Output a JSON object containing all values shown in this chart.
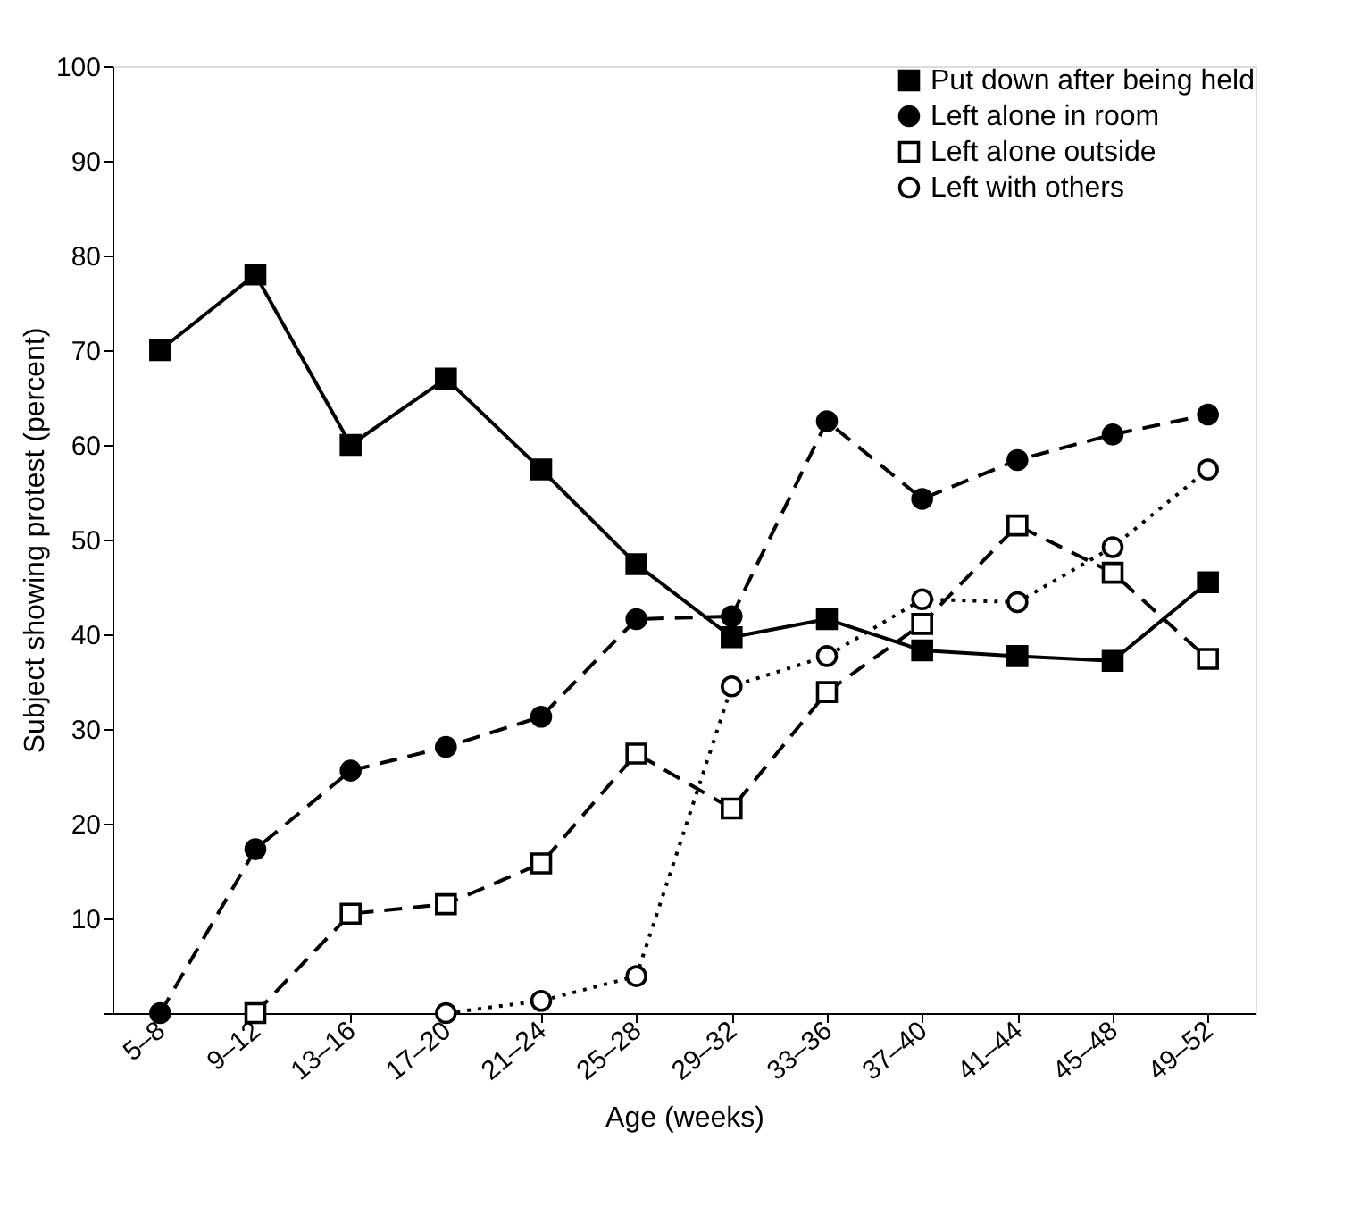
{
  "chart_data": {
    "type": "line",
    "xlabel": "Age (weeks)",
    "ylabel": "Subject showing protest (percent)",
    "categories": [
      "5–8",
      "9–12",
      "13–16",
      "17–20",
      "21–24",
      "25–28",
      "29–32",
      "33–36",
      "37–40",
      "41–44",
      "45–48",
      "49–52"
    ],
    "ylim": [
      0,
      100
    ],
    "yticks": [
      {
        "value": 0,
        "label": null
      },
      10,
      20,
      30,
      40,
      50,
      60,
      70,
      80,
      90,
      100
    ],
    "grid": false,
    "legend": "top right",
    "series": [
      {
        "name": "Put down after being held",
        "color": "#000000",
        "marker": "square",
        "line_style": "solid",
        "values": [
          70,
          78,
          60,
          67,
          57.4,
          47.4,
          39.7,
          41.6,
          38.3,
          37.7,
          37.2,
          45.5
        ]
      },
      {
        "name": "Left alone in room",
        "color": "#000000",
        "marker": "circle",
        "line_style": "dashed",
        "values": [
          0,
          17.3,
          25.6,
          28.1,
          31.3,
          41.6,
          41.9,
          62.5,
          54.3,
          58.4,
          61.1,
          63.2
        ]
      },
      {
        "name": "Left alone outside",
        "color": "#000000",
        "marker": "square-open",
        "line_style": "dashed",
        "values": [
          null,
          0,
          10.5,
          11.5,
          15.8,
          27.4,
          21.6,
          33.9,
          41.1,
          51.5,
          46.5,
          37.4
        ]
      },
      {
        "name": "Left with others",
        "color": "#000000",
        "marker": "circle-open",
        "line_style": "dotted",
        "values": [
          null,
          null,
          null,
          0,
          1.3,
          3.9,
          34.5,
          37.7,
          43.7,
          43.4,
          49.2,
          57.4
        ]
      }
    ]
  }
}
